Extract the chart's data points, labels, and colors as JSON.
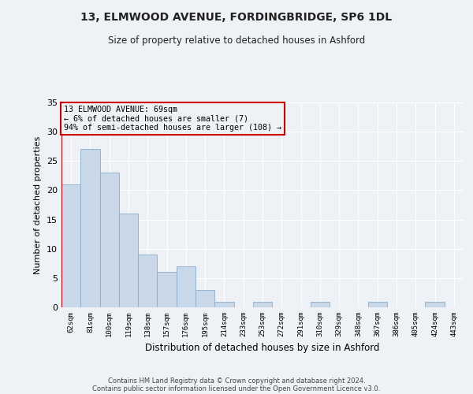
{
  "title": "13, ELMWOOD AVENUE, FORDINGBRIDGE, SP6 1DL",
  "subtitle": "Size of property relative to detached houses in Ashford",
  "xlabel": "Distribution of detached houses by size in Ashford",
  "ylabel": "Number of detached properties",
  "categories": [
    "62sqm",
    "81sqm",
    "100sqm",
    "119sqm",
    "138sqm",
    "157sqm",
    "176sqm",
    "195sqm",
    "214sqm",
    "233sqm",
    "253sqm",
    "272sqm",
    "291sqm",
    "310sqm",
    "329sqm",
    "348sqm",
    "367sqm",
    "386sqm",
    "405sqm",
    "424sqm",
    "443sqm"
  ],
  "values": [
    21,
    27,
    23,
    16,
    9,
    6,
    7,
    3,
    1,
    0,
    1,
    0,
    0,
    1,
    0,
    0,
    1,
    0,
    0,
    1,
    0
  ],
  "bar_color": "#c8d8e8",
  "bar_edge_color": "#8aabca",
  "annotation_box_text": [
    "13 ELMWOOD AVENUE: 69sqm",
    "← 6% of detached houses are smaller (7)",
    "94% of semi-detached houses are larger (108) →"
  ],
  "annotation_box_edge_color": "#cc0000",
  "vline_color": "#cc0000",
  "vline_x_index": 0,
  "ylim": [
    0,
    35
  ],
  "yticks": [
    0,
    5,
    10,
    15,
    20,
    25,
    30,
    35
  ],
  "background_color": "#eef2f7",
  "grid_color": "#ffffff",
  "footer_line1": "Contains HM Land Registry data © Crown copyright and database right 2024.",
  "footer_line2": "Contains public sector information licensed under the Open Government Licence v3.0."
}
